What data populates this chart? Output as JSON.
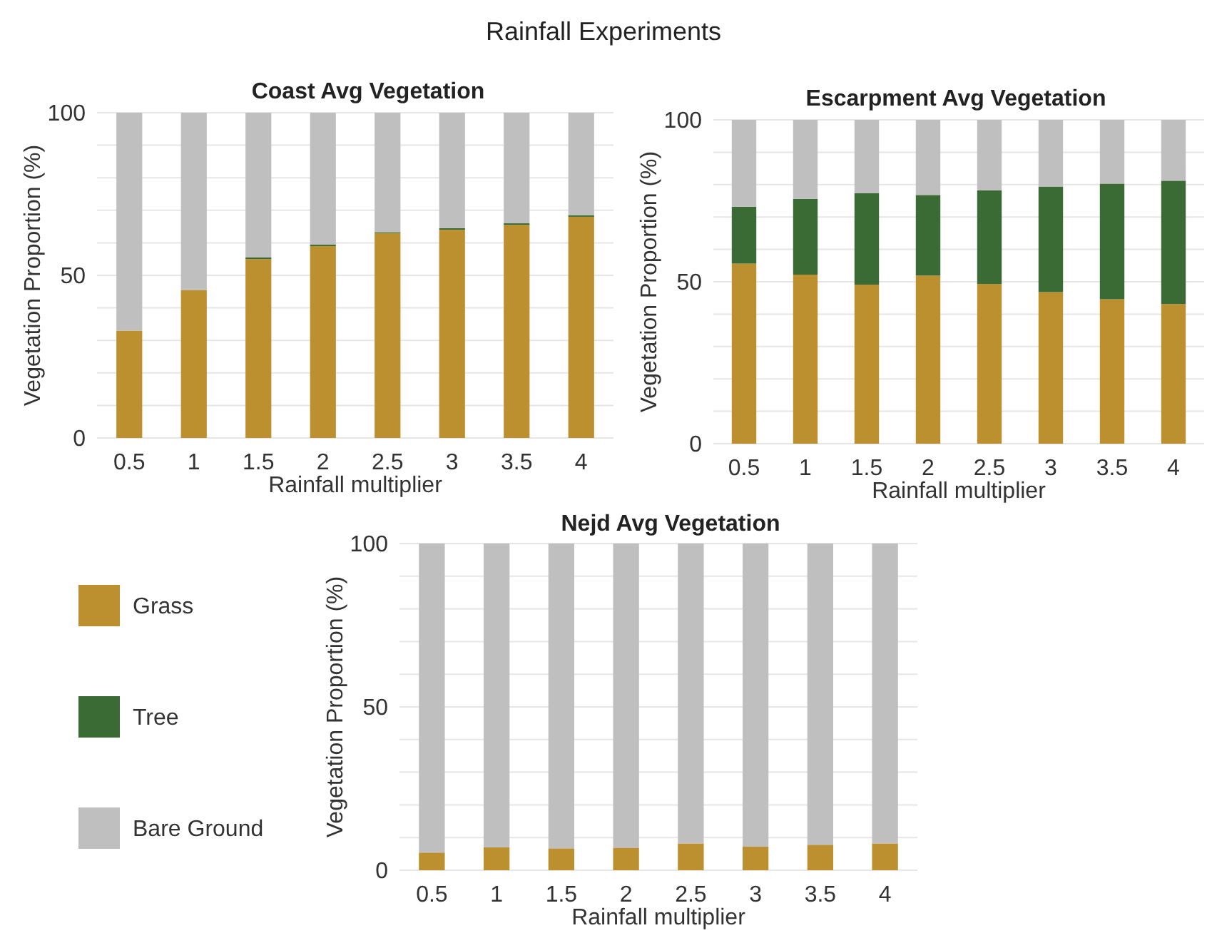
{
  "chart_data": [
    {
      "type": "bar",
      "stacked": true,
      "title": "Coast Avg Vegetation",
      "annotations": [
        "Rainfall Experiments"
      ],
      "xlabel": "Rainfall multiplier",
      "ylabel": "Vegetation Proportion (%)",
      "categories": [
        "0.5",
        "1",
        "1.5",
        "2",
        "2.5",
        "3",
        "3.5",
        "4"
      ],
      "ylim": [
        0,
        100
      ],
      "yticks": [
        0,
        {
          "value": 10,
          "label": null
        },
        {
          "value": 20,
          "label": null
        },
        {
          "value": 30,
          "label": null
        },
        {
          "value": 40,
          "label": null
        },
        50,
        {
          "value": 60,
          "label": null
        },
        {
          "value": 70,
          "label": null
        },
        {
          "value": 80,
          "label": null
        },
        {
          "value": 90,
          "label": null
        },
        100
      ],
      "grid": "y",
      "legend": false,
      "series": [
        {
          "color": "#bc8f2f",
          "values": [
            33,
            45.5,
            55,
            59,
            63,
            64,
            65.5,
            68
          ]
        },
        {
          "color": "#3b6b35",
          "values": [
            0,
            0,
            0.5,
            0.5,
            0.3,
            0.5,
            0.5,
            0.5
          ]
        },
        {
          "color": "#bfbfbf",
          "values": [
            67,
            54.5,
            44.5,
            40.5,
            36.7,
            35.5,
            34,
            31.5
          ]
        }
      ]
    },
    {
      "type": "bar",
      "stacked": true,
      "title": "Escarpment Avg Vegetation",
      "xlabel": "Rainfall multiplier",
      "ylabel": "Vegetation Proportion (%)",
      "categories": [
        "0.5",
        "1",
        "1.5",
        "2",
        "2.5",
        "3",
        "3.5",
        "4"
      ],
      "ylim": [
        0,
        100
      ],
      "yticks": [
        0,
        {
          "value": 10,
          "label": null
        },
        {
          "value": 20,
          "label": null
        },
        {
          "value": 30,
          "label": null
        },
        {
          "value": 40,
          "label": null
        },
        50,
        {
          "value": 60,
          "label": null
        },
        {
          "value": 70,
          "label": null
        },
        {
          "value": 80,
          "label": null
        },
        {
          "value": 90,
          "label": null
        },
        100
      ],
      "grid": "y",
      "legend": false,
      "series": [
        {
          "color": "#bc8f2f",
          "values": [
            55.6,
            52.2,
            49.1,
            51.9,
            49.3,
            46.8,
            44.6,
            43.1
          ]
        },
        {
          "color": "#3b6b35",
          "values": [
            17.6,
            23.4,
            28.3,
            24.9,
            28.9,
            32.6,
            35.7,
            38.1
          ]
        },
        {
          "color": "#bfbfbf",
          "values": [
            26.8,
            24.4,
            22.6,
            23.2,
            21.8,
            20.6,
            19.7,
            18.8
          ]
        }
      ]
    },
    {
      "type": "bar",
      "stacked": true,
      "title": "Nejd Avg Vegetation",
      "xlabel": "Rainfall multiplier",
      "ylabel": "Vegetation Proportion (%)",
      "categories": [
        "0.5",
        "1",
        "1.5",
        "2",
        "2.5",
        "3",
        "3.5",
        "4"
      ],
      "ylim": [
        0,
        100
      ],
      "yticks": [
        0,
        {
          "value": 10,
          "label": null
        },
        {
          "value": 20,
          "label": null
        },
        {
          "value": 30,
          "label": null
        },
        {
          "value": 40,
          "label": null
        },
        50,
        {
          "value": 60,
          "label": null
        },
        {
          "value": 70,
          "label": null
        },
        {
          "value": 80,
          "label": null
        },
        {
          "value": 90,
          "label": null
        },
        100
      ],
      "grid": "y",
      "legend": "left",
      "series": [
        {
          "name": "Grass",
          "color": "#bc8f2f",
          "values": [
            5.4,
            7,
            6.7,
            6.9,
            8.2,
            7.2,
            7.8,
            8.2
          ]
        },
        {
          "name": "Tree",
          "color": "#3b6b35",
          "values": [
            0,
            0,
            0,
            0,
            0,
            0,
            0,
            0
          ]
        },
        {
          "name": "Bare Ground",
          "color": "#bfbfbf",
          "values": [
            94.6,
            93,
            93.3,
            93.1,
            91.8,
            92.8,
            92.2,
            91.8
          ]
        }
      ]
    }
  ]
}
